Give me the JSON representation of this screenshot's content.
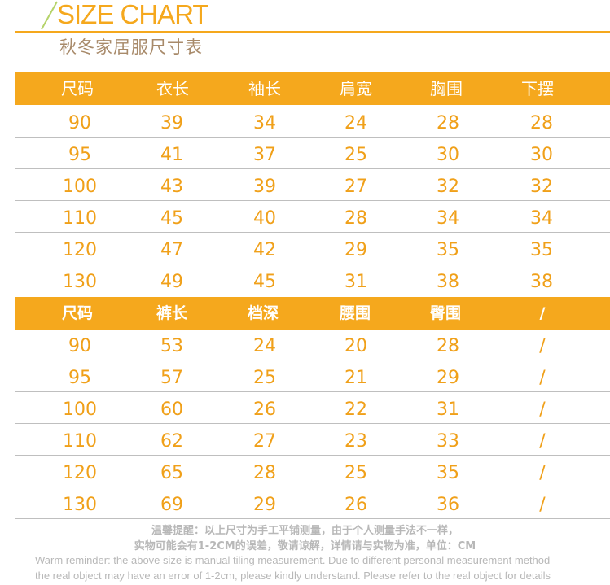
{
  "header": {
    "title": "SIZE CHART",
    "subtitle": "秋冬家居服尺寸表"
  },
  "top_table": {
    "headers": [
      "尺码",
      "衣长",
      "袖长",
      "肩宽",
      "胸围",
      "下摆"
    ],
    "rows": [
      [
        "90",
        "39",
        "34",
        "24",
        "28",
        "28"
      ],
      [
        "95",
        "41",
        "37",
        "25",
        "30",
        "30"
      ],
      [
        "100",
        "43",
        "39",
        "27",
        "32",
        "32"
      ],
      [
        "110",
        "45",
        "40",
        "28",
        "34",
        "34"
      ],
      [
        "120",
        "47",
        "42",
        "29",
        "35",
        "35"
      ],
      [
        "130",
        "49",
        "45",
        "31",
        "38",
        "38"
      ]
    ]
  },
  "bottom_table": {
    "headers": [
      "尺码",
      "裤长",
      "档深",
      "腰围",
      "臀围",
      "/"
    ],
    "rows": [
      [
        "90",
        "53",
        "24",
        "20",
        "28",
        "/"
      ],
      [
        "95",
        "57",
        "25",
        "21",
        "29",
        "/"
      ],
      [
        "100",
        "60",
        "26",
        "22",
        "31",
        "/"
      ],
      [
        "110",
        "62",
        "27",
        "23",
        "33",
        "/"
      ],
      [
        "120",
        "65",
        "28",
        "25",
        "35",
        "/"
      ],
      [
        "130",
        "69",
        "29",
        "26",
        "36",
        "/"
      ]
    ]
  },
  "notes": {
    "cn_line1": "温馨提醒：以上尺寸为手工平铺测量，由于个人测量手法不一样，",
    "cn_line2": "实物可能会有1-2CM的误差，敬请谅解，详情请与实物为准，单位：CM",
    "en_line1": "Warm reminder: the above size is manual tiling measurement. Due to different personal measurement method",
    "en_line2": "the real object may have an error of 1-2cm, please kindly understand. Please refer to the real object for details"
  },
  "colors": {
    "accent": "#f5a81d",
    "value_text": "#f0a019",
    "note_text": "#b8b8b8"
  }
}
